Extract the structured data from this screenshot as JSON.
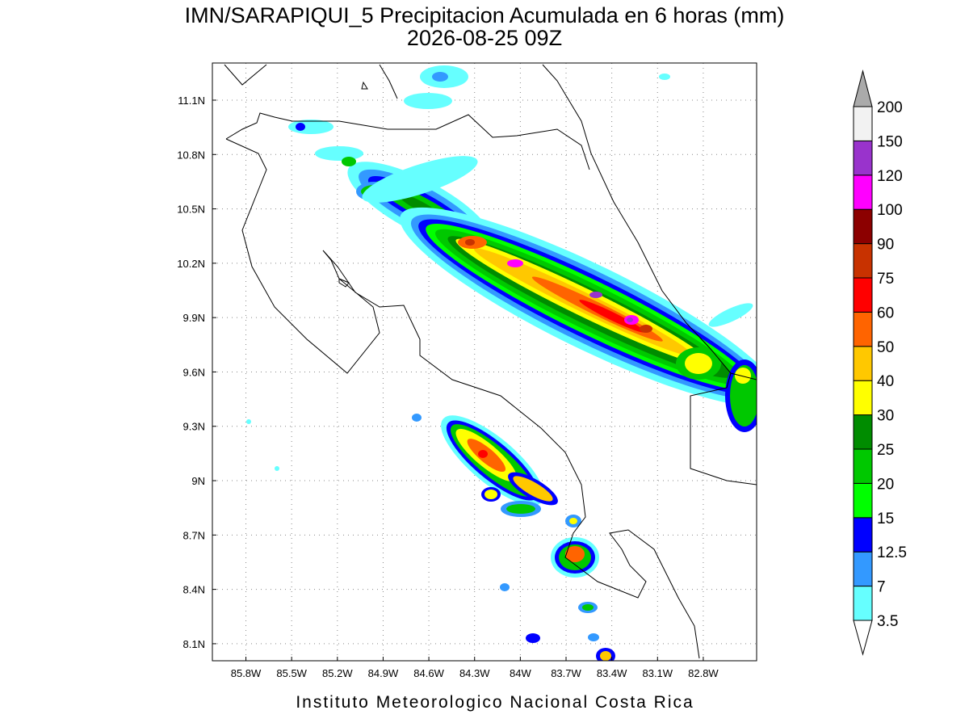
{
  "header": {
    "title": "IMN/SARAPIQUI_5 Precipitacion Acumulada en 6 horas (mm)",
    "subtitle": "2026-08-25 09Z"
  },
  "map": {
    "xlim": [
      -86.02,
      -82.45
    ],
    "ylim": [
      8.006,
      11.305
    ],
    "xticks": [
      {
        "value": -85.8,
        "label": "85.8W"
      },
      {
        "value": -85.5,
        "label": "85.5W"
      },
      {
        "value": -85.2,
        "label": "85.2W"
      },
      {
        "value": -84.9,
        "label": "84.9W"
      },
      {
        "value": -84.6,
        "label": "84.6W"
      },
      {
        "value": -84.3,
        "label": "84.3W"
      },
      {
        "value": -84.0,
        "label": "84W"
      },
      {
        "value": -83.7,
        "label": "83.7W"
      },
      {
        "value": -83.4,
        "label": "83.4W"
      },
      {
        "value": -83.1,
        "label": "83.1W"
      },
      {
        "value": -82.8,
        "label": "82.8W"
      }
    ],
    "yticks": [
      {
        "value": 11.1,
        "label": "11.1N"
      },
      {
        "value": 10.8,
        "label": "10.8N"
      },
      {
        "value": 10.5,
        "label": "10.5N"
      },
      {
        "value": 10.2,
        "label": "10.2N"
      },
      {
        "value": 9.9,
        "label": "9.9N"
      },
      {
        "value": 9.6,
        "label": "9.6N"
      },
      {
        "value": 9.3,
        "label": "9.3N"
      },
      {
        "value": 9.0,
        "label": "9N"
      },
      {
        "value": 8.7,
        "label": "8.7N"
      },
      {
        "value": 8.4,
        "label": "8.4N"
      },
      {
        "value": 8.1,
        "label": "8.1N"
      }
    ],
    "grid": true
  },
  "legend": {
    "levels": [
      3.5,
      7,
      12.5,
      15,
      20,
      25,
      30,
      40,
      50,
      60,
      75,
      90,
      100,
      120,
      150,
      200
    ],
    "colors": [
      "#66ffff",
      "#3399ff",
      "#0000ff",
      "#00ff00",
      "#00c800",
      "#008c00",
      "#ffff00",
      "#ffc800",
      "#ff6400",
      "#ff0000",
      "#c83200",
      "#8c0000",
      "#ff00ff",
      "#9933cc",
      "#f2f2f2"
    ],
    "below_color": "#ffffff",
    "above_color": "#aaaaaa"
  },
  "footer": "Instituto Meteorologico Nacional Costa Rica"
}
